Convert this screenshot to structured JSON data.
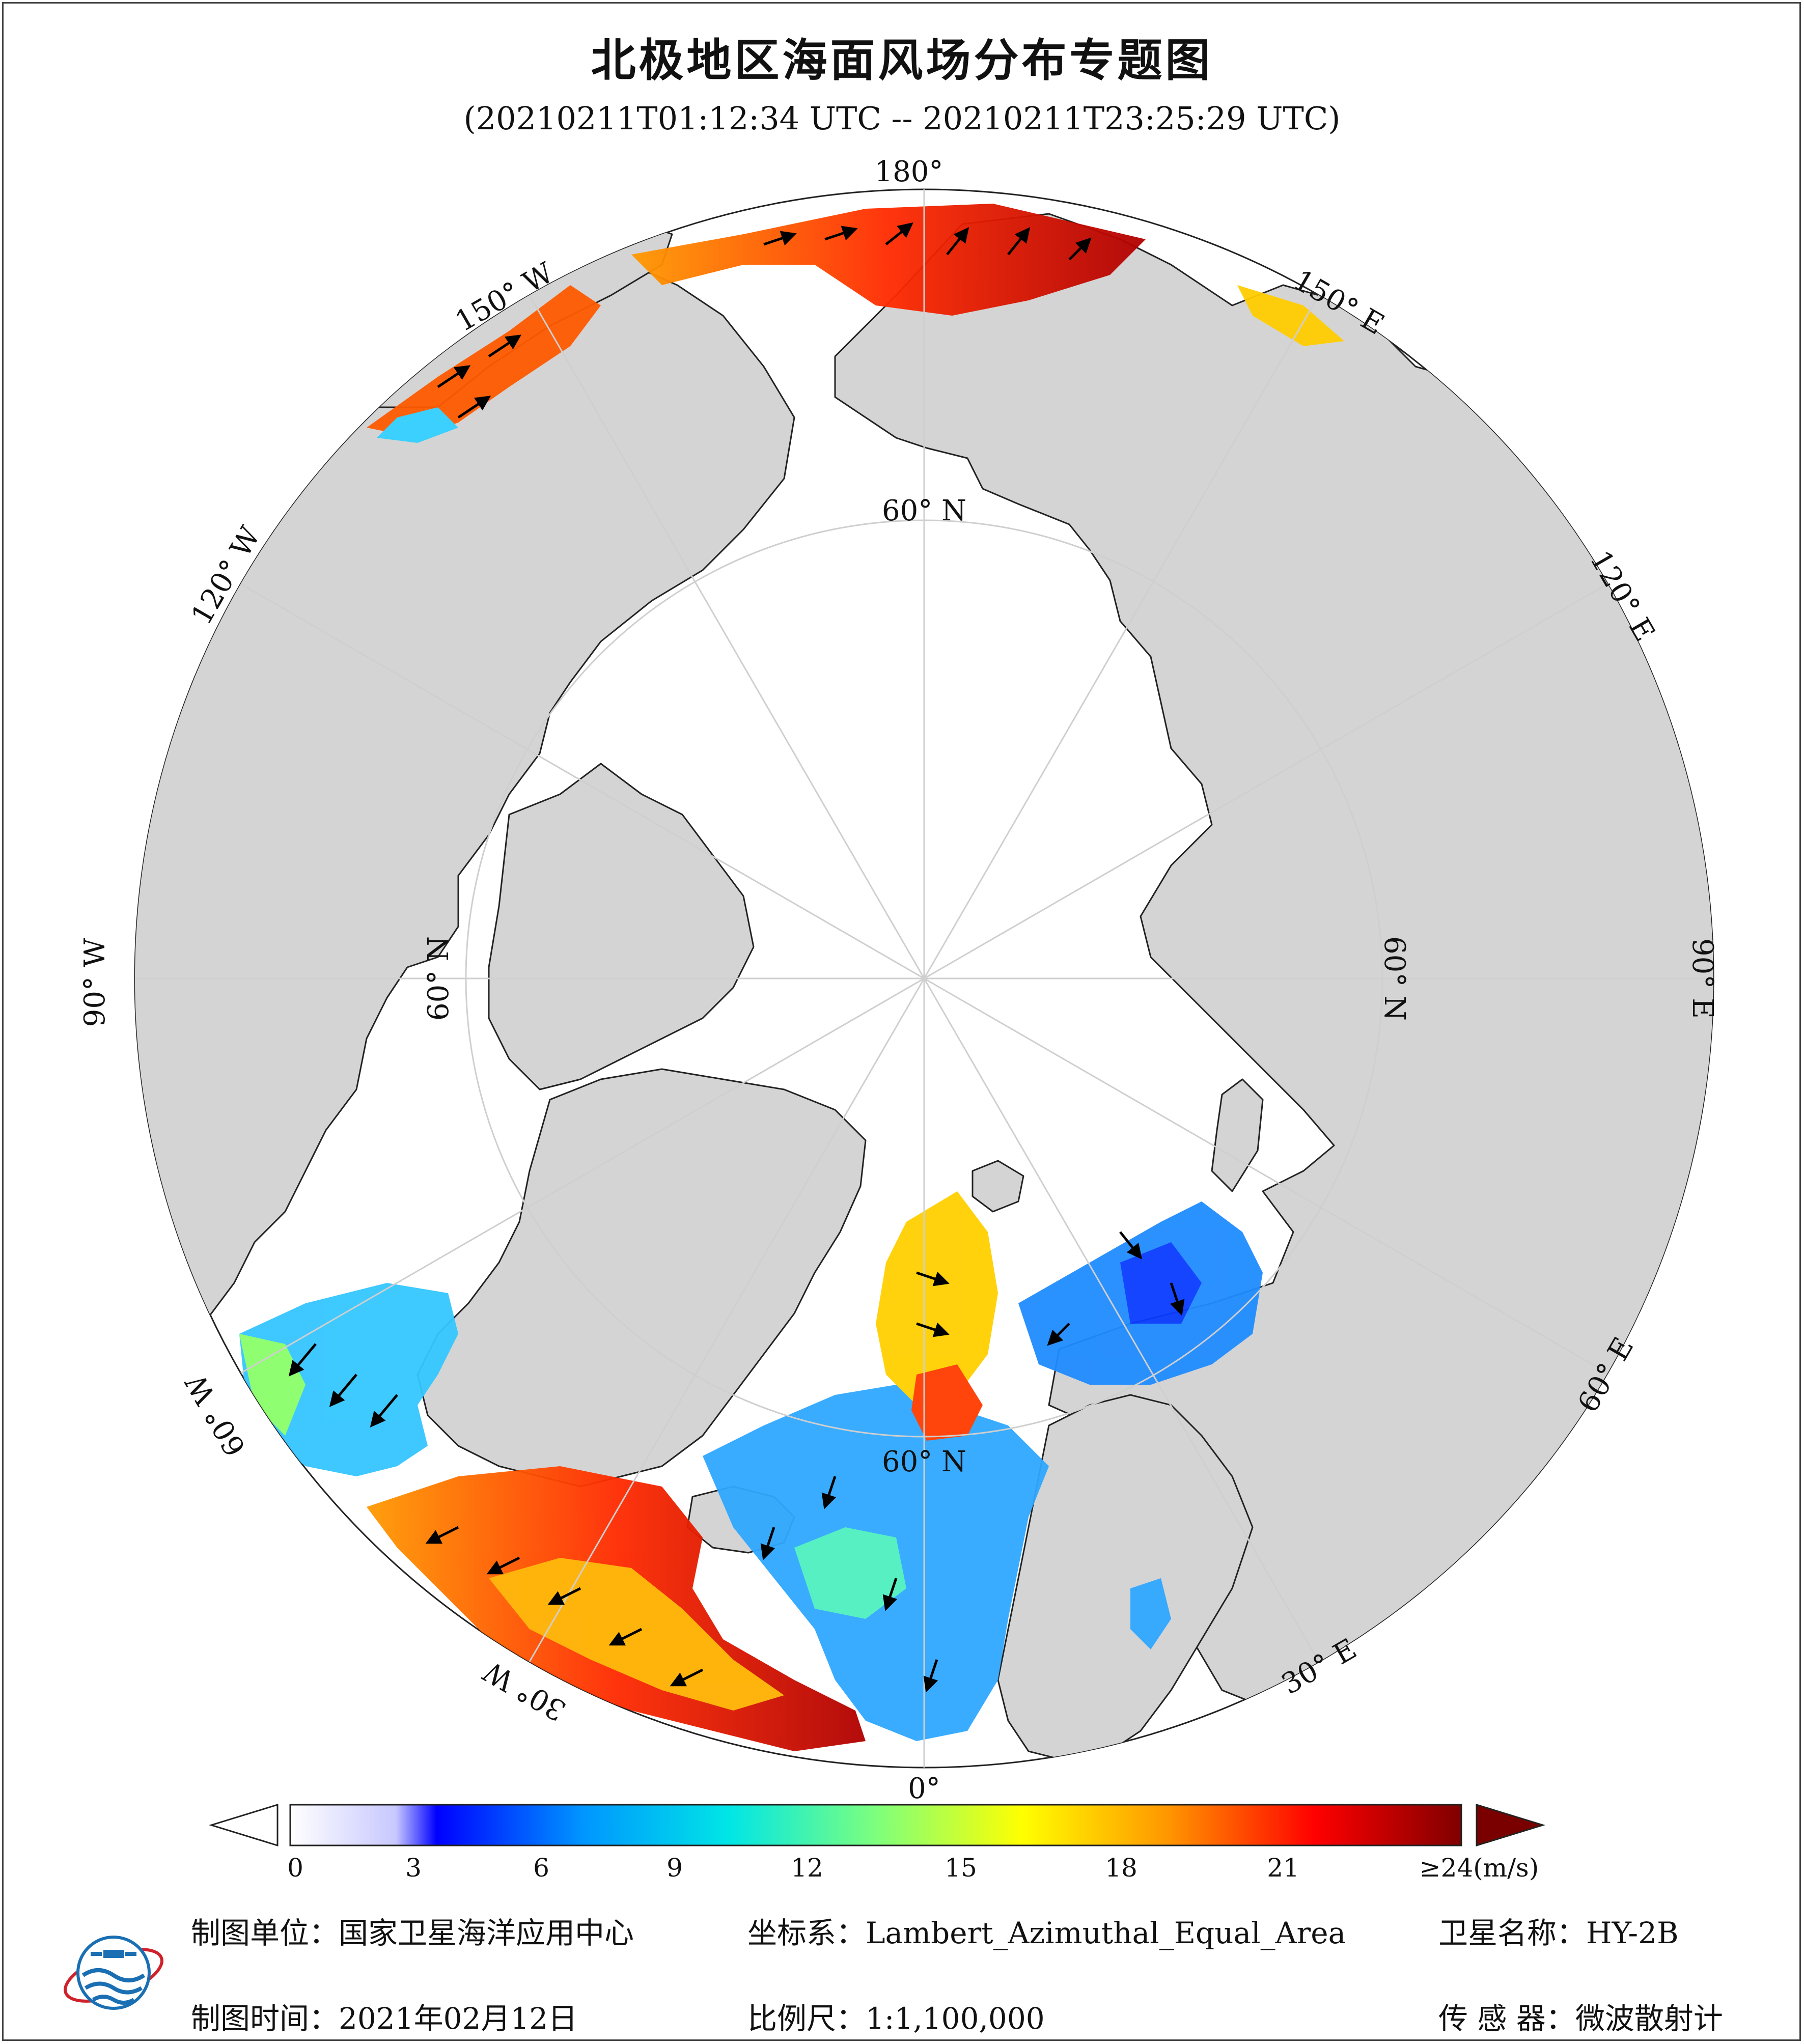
{
  "title": "北极地区海面风场分布专题图",
  "subtitle": "(20210211T01:12:34 UTC -- 20210211T23:25:29 UTC)",
  "map": {
    "projection": "Lambert_Azimuthal_Equal_Area",
    "center": "North Pole",
    "lon_labels": {
      "lon_180": "180°",
      "lon_150W": "150° W",
      "lon_120W": "120° W",
      "lon_90W": "90° W",
      "lon_60W": "60° W",
      "lon_30W": "30° W",
      "lon_0": "0°",
      "lon_30E": "30° E",
      "lon_60E": "60° E",
      "lon_90E": "90° E",
      "lon_120E": "120° E",
      "lon_150E": "150° E"
    },
    "lat_labels": {
      "lat_top": "60° N",
      "lat_left": "60° N",
      "lat_right": "60° N",
      "lat_bottom": "60° N"
    },
    "colors": {
      "land": "#d4d4d4",
      "ocean_nodata": "#ffffff",
      "graticule": "#cfcfcf",
      "coast": "#222222"
    }
  },
  "colorbar": {
    "unit": "(m/s)",
    "ticks": [
      "0",
      "3",
      "6",
      "9",
      "12",
      "15",
      "18",
      "21",
      "≥24(m/s)"
    ],
    "tick_values": [
      0,
      3,
      6,
      9,
      12,
      15,
      18,
      21,
      24
    ],
    "stops": [
      "#ffffff",
      "#c8c8ff",
      "#0000ff",
      "#0096ff",
      "#00e6e6",
      "#7dff7d",
      "#ffff00",
      "#ff9600",
      "#ff0000",
      "#800000"
    ],
    "max_color": "#7a0000"
  },
  "footer": {
    "org": "制图单位：国家卫星海洋应用中心",
    "coords": "坐标系：Lambert_Azimuthal_Equal_Area",
    "satellite": "卫星名称：HY-2B",
    "date": "制图时间：2021年02月12日",
    "scale": "比例尺：1:1,100,000",
    "sensor": "传 感 器：微波散射计"
  }
}
